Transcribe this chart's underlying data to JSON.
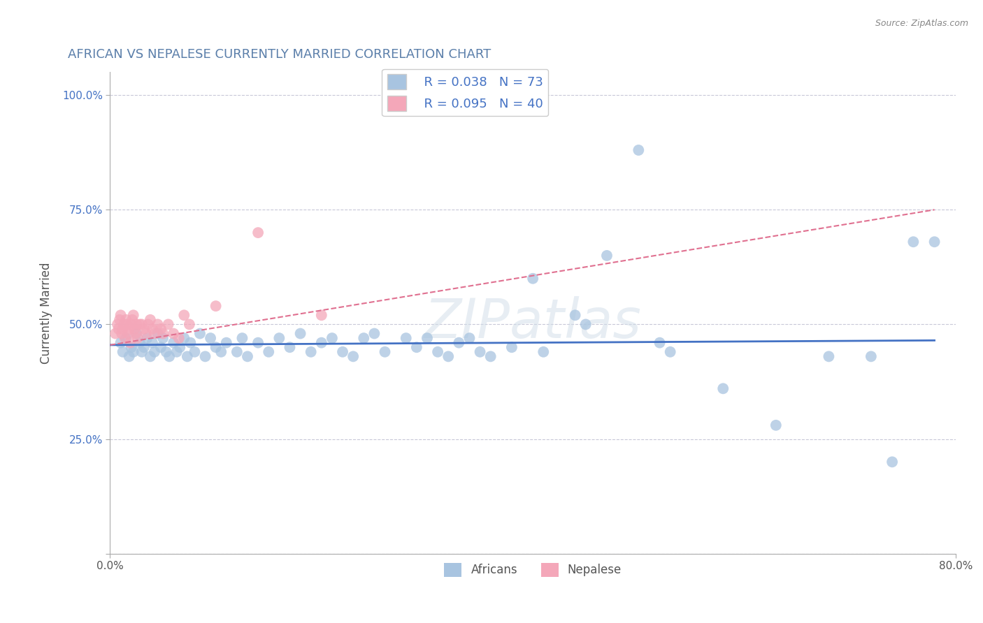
{
  "title": "AFRICAN VS NEPALESE CURRENTLY MARRIED CORRELATION CHART",
  "source": "Source: ZipAtlas.com",
  "ylabel": "Currently Married",
  "watermark": "ZIPatlas",
  "xlim": [
    0.0,
    0.8
  ],
  "ylim": [
    0.0,
    1.05
  ],
  "x_ticks": [
    0.0,
    0.8
  ],
  "x_tick_labels": [
    "0.0%",
    "80.0%"
  ],
  "y_ticks": [
    0.0,
    0.25,
    0.5,
    0.75,
    1.0
  ],
  "y_tick_labels": [
    "",
    "25.0%",
    "50.0%",
    "75.0%",
    "100.0%"
  ],
  "africans_R": 0.038,
  "africans_N": 73,
  "nepalese_R": 0.095,
  "nepalese_N": 40,
  "african_color": "#a8c4e0",
  "nepalese_color": "#f4a7b9",
  "african_line_color": "#4472c4",
  "nepalese_line_color": "#e07090",
  "grid_color": "#c8c8d8",
  "title_color": "#5b7faa",
  "africans_x": [
    0.01,
    0.012,
    0.015,
    0.018,
    0.02,
    0.022,
    0.025,
    0.028,
    0.03,
    0.032,
    0.035,
    0.038,
    0.04,
    0.042,
    0.045,
    0.048,
    0.05,
    0.053,
    0.056,
    0.06,
    0.063,
    0.066,
    0.07,
    0.073,
    0.076,
    0.08,
    0.085,
    0.09,
    0.095,
    0.1,
    0.105,
    0.11,
    0.12,
    0.125,
    0.13,
    0.14,
    0.15,
    0.16,
    0.17,
    0.18,
    0.19,
    0.2,
    0.21,
    0.22,
    0.23,
    0.24,
    0.25,
    0.26,
    0.28,
    0.29,
    0.3,
    0.31,
    0.32,
    0.33,
    0.34,
    0.35,
    0.36,
    0.38,
    0.4,
    0.41,
    0.44,
    0.45,
    0.47,
    0.5,
    0.52,
    0.53,
    0.58,
    0.63,
    0.68,
    0.72,
    0.74,
    0.76,
    0.78
  ],
  "africans_y": [
    0.46,
    0.44,
    0.47,
    0.43,
    0.45,
    0.44,
    0.48,
    0.46,
    0.44,
    0.45,
    0.47,
    0.43,
    0.46,
    0.44,
    0.48,
    0.45,
    0.47,
    0.44,
    0.43,
    0.46,
    0.44,
    0.45,
    0.47,
    0.43,
    0.46,
    0.44,
    0.48,
    0.43,
    0.47,
    0.45,
    0.44,
    0.46,
    0.44,
    0.47,
    0.43,
    0.46,
    0.44,
    0.47,
    0.45,
    0.48,
    0.44,
    0.46,
    0.47,
    0.44,
    0.43,
    0.47,
    0.48,
    0.44,
    0.47,
    0.45,
    0.47,
    0.44,
    0.43,
    0.46,
    0.47,
    0.44,
    0.43,
    0.45,
    0.6,
    0.44,
    0.52,
    0.5,
    0.65,
    0.88,
    0.46,
    0.44,
    0.36,
    0.28,
    0.43,
    0.43,
    0.2,
    0.68,
    0.68
  ],
  "nepalese_x": [
    0.005,
    0.007,
    0.008,
    0.009,
    0.01,
    0.011,
    0.012,
    0.013,
    0.014,
    0.015,
    0.016,
    0.017,
    0.018,
    0.019,
    0.02,
    0.021,
    0.022,
    0.023,
    0.024,
    0.025,
    0.026,
    0.028,
    0.03,
    0.032,
    0.034,
    0.036,
    0.038,
    0.04,
    0.042,
    0.045,
    0.048,
    0.05,
    0.055,
    0.06,
    0.065,
    0.07,
    0.075,
    0.1,
    0.14,
    0.2
  ],
  "nepalese_y": [
    0.48,
    0.5,
    0.49,
    0.51,
    0.52,
    0.48,
    0.49,
    0.5,
    0.47,
    0.51,
    0.5,
    0.48,
    0.49,
    0.46,
    0.5,
    0.51,
    0.52,
    0.49,
    0.48,
    0.5,
    0.47,
    0.5,
    0.5,
    0.49,
    0.48,
    0.5,
    0.51,
    0.49,
    0.48,
    0.5,
    0.49,
    0.48,
    0.5,
    0.48,
    0.47,
    0.52,
    0.5,
    0.54,
    0.7,
    0.52
  ],
  "african_trend_x": [
    0.0,
    0.78
  ],
  "african_trend_y": [
    0.455,
    0.465
  ],
  "nepalese_trend_x": [
    0.0,
    0.78
  ],
  "nepalese_trend_y": [
    0.455,
    0.75
  ]
}
